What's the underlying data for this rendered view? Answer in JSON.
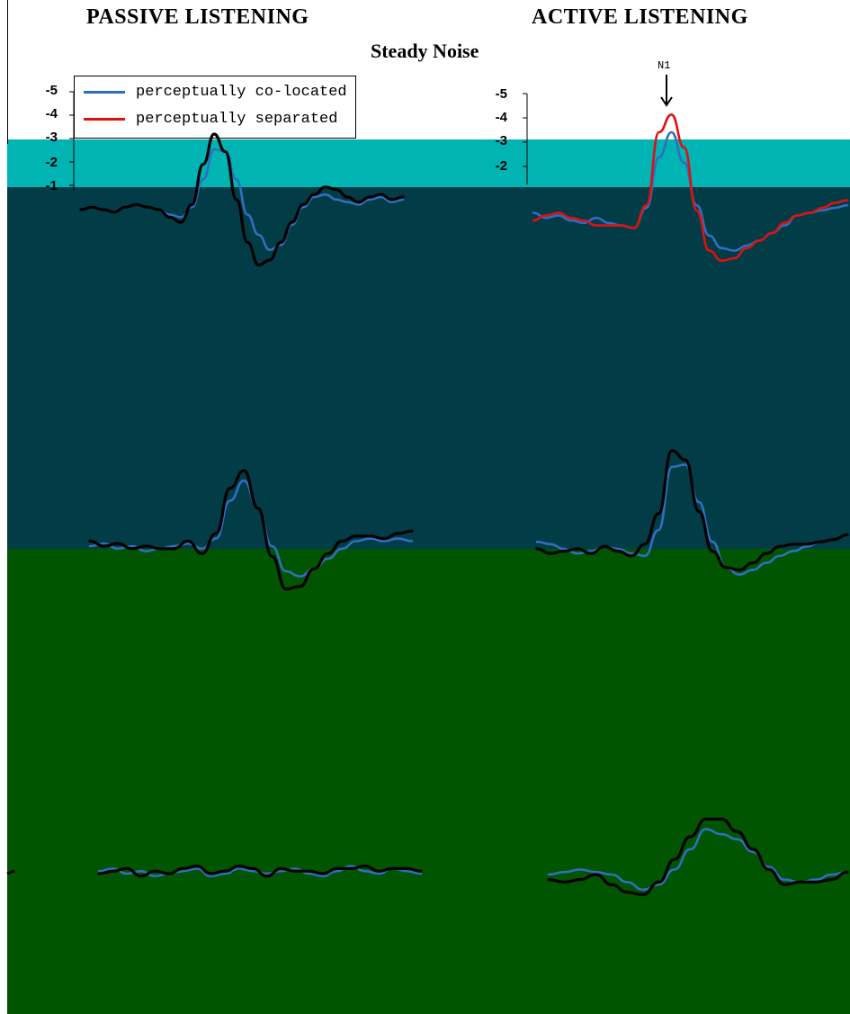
{
  "titles": {
    "left": "PASSIVE LISTENING",
    "right": "ACTIVE LISTENING",
    "center": "Steady Noise"
  },
  "legend": {
    "items": [
      {
        "label": "perceptually co-located",
        "color": "#2f6fbf"
      },
      {
        "label": "perceptually separated",
        "color": "#e01010"
      }
    ]
  },
  "annotation": {
    "n1_label": "N1"
  },
  "axis": {
    "yticks_left": [
      "-5",
      "-4",
      "-3",
      "-2",
      "-1"
    ],
    "yticks_right": [
      "-5",
      "-4",
      "-3",
      "-2"
    ]
  },
  "colors": {
    "background": "#ffffff",
    "band_teal": "#00b4b4",
    "band_dark": "#023c46",
    "band_green": "#015400",
    "trace_black": "#000000",
    "trace_blue": "#2f6fbf",
    "trace_red": "#e01010"
  },
  "chart_data": {
    "type": "line",
    "title": "Steady Noise",
    "ylabel": "",
    "y_axis_inverted": true,
    "panels": [
      {
        "column": "PASSIVE LISTENING",
        "row": 1,
        "series": [
          {
            "name": "perceptually co-located",
            "color": "#2f6fbf",
            "values": [
              0,
              0.1,
              0,
              -0.1,
              0.1,
              0.2,
              0.1,
              0,
              -0.2,
              -0.3,
              0.1,
              1.2,
              2.4,
              2.3,
              1.2,
              -0.2,
              -1.0,
              -1.6,
              -1.4,
              -0.6,
              0.1,
              0.5,
              0.6,
              0.4,
              0.3,
              0.2,
              0.4,
              0.5,
              0.3,
              0.4
            ]
          },
          {
            "name": "",
            "color": "#000000",
            "values": [
              0,
              0.1,
              0,
              -0.1,
              0.1,
              0.2,
              0.1,
              0,
              -0.3,
              -0.5,
              0.2,
              1.8,
              3.0,
              2.3,
              0.4,
              -1.3,
              -2.2,
              -2.0,
              -1.3,
              -0.5,
              0.2,
              0.6,
              0.9,
              0.8,
              0.5,
              0.3,
              0.5,
              0.6,
              0.4,
              0.5
            ]
          }
        ]
      },
      {
        "column": "ACTIVE LISTENING",
        "row": 1,
        "series": [
          {
            "name": "perceptually co-located",
            "color": "#2f6fbf",
            "values": [
              0.3,
              0.1,
              0.2,
              0,
              -0.1,
              0.1,
              -0.1,
              -0.2,
              -0.3,
              0.5,
              2.5,
              3.5,
              2.3,
              0.6,
              -0.6,
              -1.1,
              -1.2,
              -1.0,
              -0.8,
              -0.5,
              -0.2,
              0.2,
              0.3,
              0.4,
              0.5,
              0.6
            ]
          },
          {
            "name": "perceptually separated",
            "color": "#e01010",
            "values": [
              0,
              0.2,
              0.3,
              0.1,
              0,
              -0.2,
              -0.2,
              -0.2,
              -0.3,
              0.6,
              3.5,
              4.2,
              2.9,
              0.4,
              -1.2,
              -1.6,
              -1.5,
              -1.1,
              -0.8,
              -0.5,
              -0.1,
              0.2,
              0.3,
              0.5,
              0.7,
              0.8
            ]
          }
        ]
      },
      {
        "column": "PASSIVE LISTENING",
        "row": 2,
        "series": [
          {
            "name": "perceptually co-located",
            "color": "#2f6fbf",
            "values": [
              0,
              0.1,
              -0.1,
              0,
              -0.2,
              -0.1,
              0,
              0.1,
              -0.1,
              0.3,
              1.8,
              2.6,
              1.5,
              0,
              -1.0,
              -1.2,
              -0.9,
              -0.5,
              -0.1,
              0.2,
              0.3,
              0.2,
              0.3,
              0.2
            ]
          },
          {
            "name": "",
            "color": "#000000",
            "values": [
              0.2,
              0,
              0.1,
              -0.1,
              0,
              -0.1,
              -0.1,
              0.2,
              -0.3,
              0.5,
              2.3,
              3.0,
              1.5,
              -0.4,
              -1.7,
              -1.6,
              -0.9,
              -0.3,
              0.2,
              0.4,
              0.4,
              0.3,
              0.5,
              0.6
            ]
          }
        ]
      },
      {
        "column": "ACTIVE LISTENING",
        "row": 2,
        "series": [
          {
            "name": "perceptually co-located",
            "color": "#2f6fbf",
            "values": [
              0.3,
              0.2,
              0,
              -0.2,
              -0.1,
              0.1,
              0,
              -0.2,
              -0.3,
              0.8,
              3.5,
              3.6,
              2.0,
              0.3,
              -0.8,
              -1.1,
              -0.9,
              -0.6,
              -0.3,
              -0.1,
              0.1,
              0.3,
              0.4,
              0.6
            ]
          },
          {
            "name": "",
            "color": "#000000",
            "values": [
              0,
              -0.2,
              -0.1,
              0,
              -0.2,
              0.1,
              -0.1,
              -0.3,
              0.2,
              1.5,
              4.2,
              3.8,
              1.6,
              -0.1,
              -0.8,
              -0.9,
              -0.6,
              -0.2,
              0.1,
              0.2,
              0.2,
              0.3,
              0.4,
              0.6
            ]
          }
        ]
      },
      {
        "column": "PASSIVE LISTENING",
        "row": 3,
        "series": [
          {
            "name": "perceptually co-located",
            "color": "#2f6fbf",
            "values": [
              0.1,
              0.2,
              0,
              0.1,
              -0.1,
              0,
              0.1,
              0.2,
              -0.1,
              0,
              0.2,
              0.1,
              0,
              0.1,
              0.2,
              0,
              -0.1,
              0.1,
              0.3,
              0.1,
              0,
              0.2,
              0.1,
              0
            ]
          },
          {
            "name": "",
            "color": "#000000",
            "values": [
              0,
              0.1,
              0.2,
              -0.1,
              0.1,
              0,
              0.2,
              0.3,
              0,
              0.1,
              0.3,
              0.2,
              -0.1,
              0.2,
              0.1,
              0.1,
              0,
              0.2,
              0.2,
              0.3,
              0.1,
              0.2,
              0.2,
              0.1
            ]
          }
        ]
      },
      {
        "column": "ACTIVE LISTENING",
        "row": 3,
        "series": [
          {
            "name": "perceptually co-located",
            "color": "#2f6fbf",
            "values": [
              0,
              0.1,
              0.2,
              0.1,
              0,
              -0.3,
              -0.6,
              -0.4,
              0.2,
              1.0,
              1.8,
              1.6,
              1.4,
              0.9,
              0.3,
              -0.2,
              -0.3,
              -0.2,
              0,
              0.1
            ]
          },
          {
            "name": "",
            "color": "#000000",
            "values": [
              -0.2,
              -0.3,
              -0.2,
              0,
              -0.4,
              -0.7,
              -0.8,
              -0.3,
              0.6,
              1.5,
              2.2,
              2.2,
              1.7,
              1.0,
              0.2,
              -0.4,
              -0.3,
              -0.3,
              -0.2,
              0.1
            ]
          }
        ]
      }
    ]
  }
}
